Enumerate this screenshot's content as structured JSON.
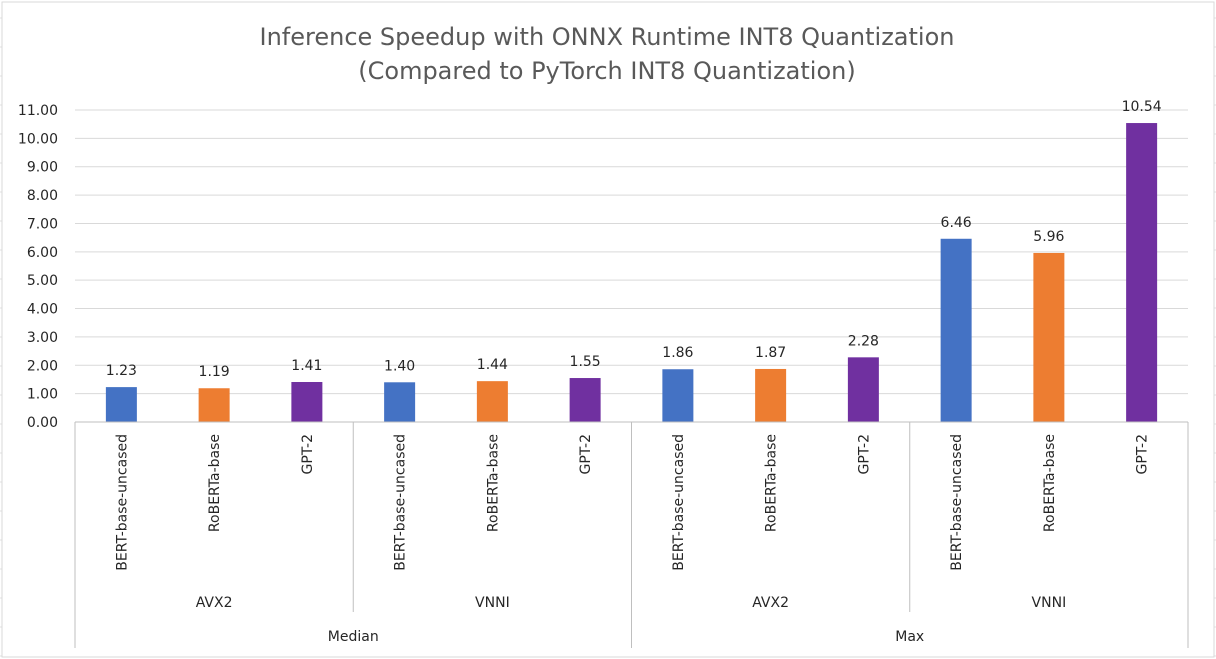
{
  "colors": {
    "BERT-base-uncased": "#4472C4",
    "RoBERTa-base": "#ED7D31",
    "GPT-2": "#7030A0",
    "gridline": "#D9D9D9",
    "axis": "#BFBFBF",
    "sheet_grid": "#E1E1E1"
  },
  "chart_data": {
    "type": "bar",
    "title": [
      "Inference Speedup with ONNX Runtime INT8 Quantization",
      "(Compared to PyTorch INT8 Quantization)"
    ],
    "ylim": [
      0,
      11
    ],
    "y_ticks": [
      "0.00",
      "1.00",
      "2.00",
      "3.00",
      "4.00",
      "5.00",
      "6.00",
      "7.00",
      "8.00",
      "9.00",
      "10.00",
      "11.00"
    ],
    "grid": true,
    "legend": "none",
    "levels": [
      {
        "label": "Median",
        "groups": [
          "AVX2",
          "VNNI"
        ]
      },
      {
        "label": "Max",
        "groups": [
          "AVX2",
          "VNNI"
        ]
      }
    ],
    "group_labels": [
      "AVX2",
      "VNNI",
      "AVX2",
      "VNNI"
    ],
    "top_level_labels": [
      "Median",
      "Max"
    ],
    "bars": [
      {
        "category": "BERT-base-uncased",
        "group": "AVX2",
        "level": "Median",
        "value": 1.23,
        "label": "1.23"
      },
      {
        "category": "RoBERTa-base",
        "group": "AVX2",
        "level": "Median",
        "value": 1.19,
        "label": "1.19"
      },
      {
        "category": "GPT-2",
        "group": "AVX2",
        "level": "Median",
        "value": 1.41,
        "label": "1.41"
      },
      {
        "category": "BERT-base-uncased",
        "group": "VNNI",
        "level": "Median",
        "value": 1.4,
        "label": "1.40"
      },
      {
        "category": "RoBERTa-base",
        "group": "VNNI",
        "level": "Median",
        "value": 1.44,
        "label": "1.44"
      },
      {
        "category": "GPT-2",
        "group": "VNNI",
        "level": "Median",
        "value": 1.55,
        "label": "1.55"
      },
      {
        "category": "BERT-base-uncased",
        "group": "AVX2",
        "level": "Max",
        "value": 1.86,
        "label": "1.86"
      },
      {
        "category": "RoBERTa-base",
        "group": "AVX2",
        "level": "Max",
        "value": 1.87,
        "label": "1.87"
      },
      {
        "category": "GPT-2",
        "group": "AVX2",
        "level": "Max",
        "value": 2.28,
        "label": "2.28"
      },
      {
        "category": "BERT-base-uncased",
        "group": "VNNI",
        "level": "Max",
        "value": 6.46,
        "label": "6.46"
      },
      {
        "category": "RoBERTa-base",
        "group": "VNNI",
        "level": "Max",
        "value": 5.96,
        "label": "5.96"
      },
      {
        "category": "GPT-2",
        "group": "VNNI",
        "level": "Max",
        "value": 10.54,
        "label": "10.54"
      }
    ]
  }
}
